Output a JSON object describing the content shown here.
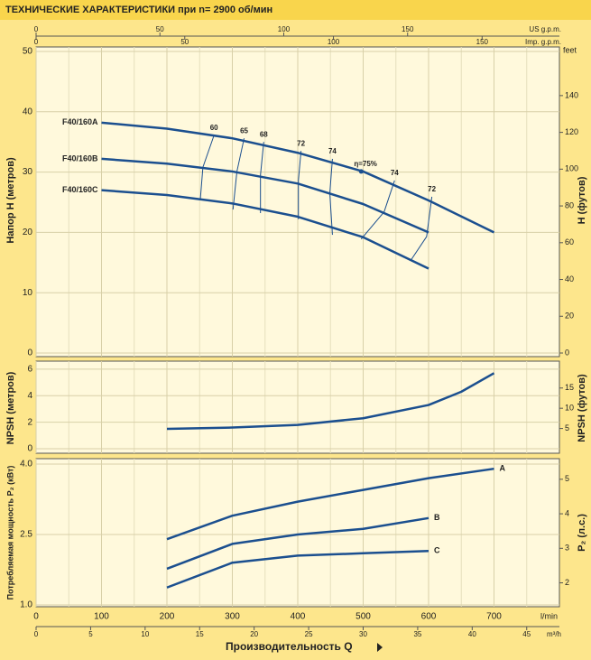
{
  "title": "ТЕХНИЧЕСКИЕ ХАРАКТЕРИСТИКИ при n= 2900 об/мин",
  "x_axis": {
    "label": "Производительность Q",
    "unit": "l/min",
    "xlim": [
      0,
      800
    ],
    "xticks": [
      0,
      100,
      200,
      300,
      400,
      500,
      600,
      700
    ],
    "xminorticks": [
      50,
      150,
      250,
      350,
      450,
      550,
      650,
      750
    ]
  },
  "secondary_x_axes": [
    {
      "unit": "US g.p.m.",
      "xlim": [
        0,
        211.3
      ],
      "xticks": [
        0,
        50,
        100,
        150
      ]
    },
    {
      "unit": "Imp. g.p.m.",
      "xlim": [
        0,
        176
      ],
      "xticks": [
        0,
        50,
        100,
        150
      ]
    },
    {
      "unit": "m³/h",
      "xlim": [
        0,
        48
      ],
      "xticks": [
        0,
        5,
        10,
        15,
        20,
        25,
        30,
        35,
        40,
        45
      ]
    }
  ],
  "chart_data": [
    {
      "type": "line",
      "y_label": "Напор H   (метров)",
      "y2_label": "H   (футов)",
      "y2_unit": "feet",
      "ylim": [
        0,
        50
      ],
      "yticks": [
        0,
        10,
        20,
        30,
        40,
        50
      ],
      "y2lim": [
        0,
        164
      ],
      "y2ticks": [
        0,
        20,
        40,
        60,
        80,
        100,
        120,
        140
      ],
      "series_label_position": "start",
      "series": [
        {
          "name": "F40/160A",
          "color": "#1b4f8f",
          "x": [
            100,
            200,
            300,
            400,
            500,
            600,
            700
          ],
          "values": [
            38.2,
            37.2,
            35.6,
            33.2,
            30.1,
            25.3,
            20
          ]
        },
        {
          "name": "F40/160B",
          "color": "#1b4f8f",
          "x": [
            100,
            200,
            300,
            400,
            500,
            600
          ],
          "values": [
            32.2,
            31.4,
            30.1,
            28.1,
            24.7,
            20
          ]
        },
        {
          "name": "F40/160C",
          "color": "#1b4f8f",
          "x": [
            100,
            200,
            300,
            400,
            500,
            600
          ],
          "values": [
            27,
            26.2,
            24.8,
            22.6,
            19.2,
            14
          ]
        }
      ],
      "efficiency": [
        {
          "label": "60",
          "x": [
            272,
            255,
            251
          ],
          "values": [
            36.1,
            30.8,
            25.4
          ]
        },
        {
          "label": "65",
          "x": [
            318,
            307,
            301
          ],
          "values": [
            35.6,
            30.1,
            23.8
          ]
        },
        {
          "label": "68",
          "x": [
            348,
            343,
            343
          ],
          "values": [
            35,
            29.5,
            23.2
          ]
        },
        {
          "label": "72",
          "x": [
            405,
            401,
            401
          ],
          "values": [
            33.5,
            28.6,
            22.2
          ]
        },
        {
          "label": "74",
          "x": [
            453,
            449,
            453
          ],
          "values": [
            32.2,
            26.5,
            19.6
          ]
        },
        {
          "label": "η=75%",
          "x": [
            497
          ],
          "values": [
            30.1
          ]
        },
        {
          "label": "74",
          "x": [
            548,
            532,
            497
          ],
          "values": [
            28.6,
            23.4,
            18.9
          ]
        },
        {
          "label": "72",
          "x": [
            605,
            597,
            573
          ],
          "values": [
            25.9,
            19.3,
            15.4
          ]
        }
      ]
    },
    {
      "type": "line",
      "y_label": "NPSH   (метров)",
      "y2_label": "NPSH   (футов)",
      "ylim": [
        0,
        6.2
      ],
      "yticks": [
        0,
        2,
        4,
        6
      ],
      "y2lim": [
        0,
        20.3
      ],
      "y2ticks": [
        5,
        10,
        15
      ],
      "series": [
        {
          "color": "#1b4f8f",
          "x": [
            200,
            300,
            400,
            500,
            600,
            650,
            700
          ],
          "values": [
            1.5,
            1.6,
            1.8,
            2.3,
            3.3,
            4.3,
            5.7
          ]
        }
      ]
    },
    {
      "type": "line",
      "y_label": "Потребляемая мощность  P₂ (кВт)",
      "y2_label": "P₂   (л.с.)",
      "ylim": [
        1,
        4
      ],
      "yticks": [
        {
          "value": 1,
          "label": "1.0"
        },
        {
          "value": 2.5,
          "label": "2.5"
        },
        {
          "value": 4,
          "label": "4.0"
        }
      ],
      "y2lim": [
        1.36,
        5.44
      ],
      "y2ticks": [
        2,
        3,
        4,
        5
      ],
      "series_label_position": "end",
      "series": [
        {
          "name": "A",
          "color": "#1b4f8f",
          "x": [
            200,
            300,
            400,
            500,
            600,
            700
          ],
          "values": [
            2.4,
            2.9,
            3.2,
            3.45,
            3.7,
            3.9
          ]
        },
        {
          "name": "B",
          "color": "#1b4f8f",
          "x": [
            200,
            300,
            400,
            500,
            600
          ],
          "values": [
            1.77,
            2.3,
            2.5,
            2.62,
            2.85
          ]
        },
        {
          "name": "C",
          "color": "#1b4f8f",
          "x": [
            200,
            300,
            400,
            500,
            600
          ],
          "values": [
            1.37,
            1.9,
            2.05,
            2.1,
            2.15
          ]
        }
      ]
    }
  ]
}
